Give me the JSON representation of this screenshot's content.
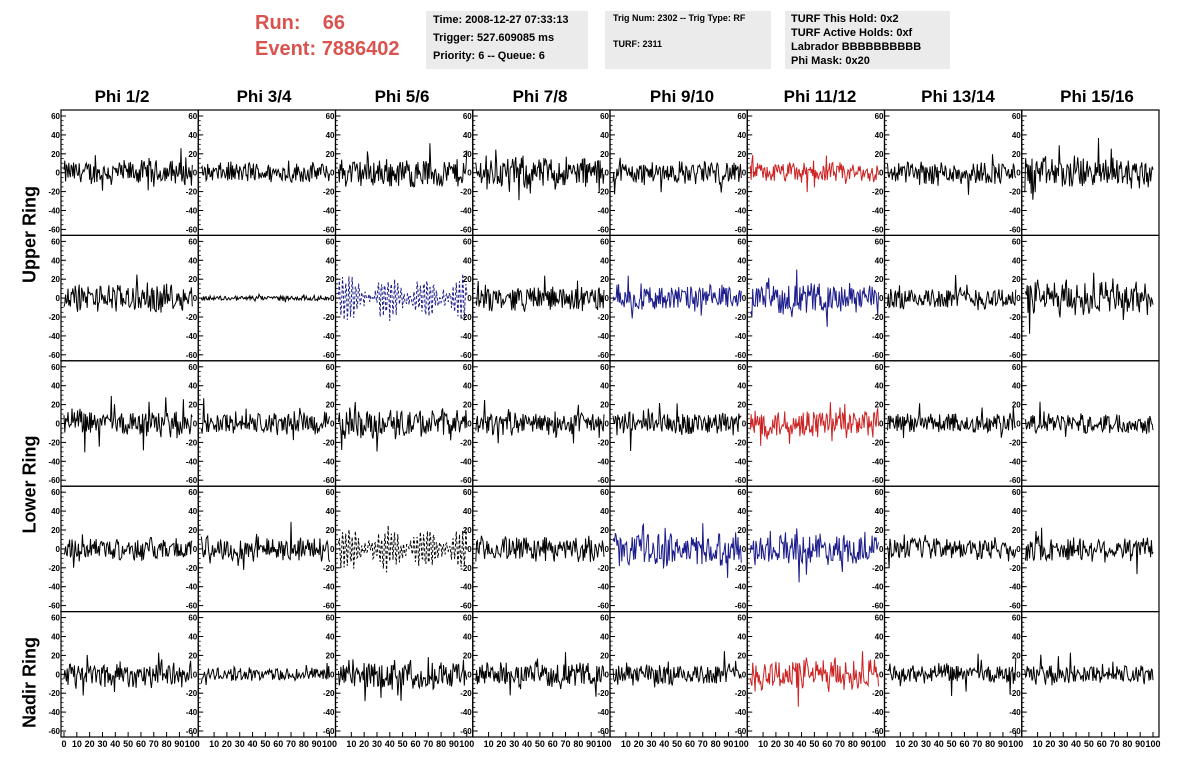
{
  "header": {
    "run_label": "Run:",
    "run_value": "66",
    "event_label": "Event:",
    "event_value": "7886402"
  },
  "info": {
    "time": "Time: 2008-12-27 07:33:13",
    "trigger": "Trigger: 527.609085 ms",
    "priority": "Priority: 6 -- Queue: 6",
    "trig": "Trig Num: 2302 -- Trig Type: RF",
    "turf": "TURF: 2311",
    "turf_hold": "TURF This Hold: 0x2",
    "turf_active": "TURF Active Holds: 0xf",
    "labrador": "Labrador BBBBBBBBBB",
    "phi_mask": "Phi Mask: 0x20"
  },
  "columns": [
    "Phi 1/2",
    "Phi 3/4",
    "Phi 5/6",
    "Phi 7/8",
    "Phi 9/10",
    "Phi 11/12",
    "Phi 13/14",
    "Phi 15/16"
  ],
  "rings": [
    "Upper Ring",
    "Lower Ring",
    "Nadir Ring"
  ],
  "chart_data": {
    "type": "line",
    "ylim": [
      -60,
      60
    ],
    "xlim": [
      0,
      100
    ],
    "y_ticks": [
      60,
      40,
      20,
      0,
      -20,
      -40,
      -60
    ],
    "x_ticks_first": [
      0,
      10,
      20,
      30,
      40,
      50,
      60,
      70,
      80,
      90,
      100
    ],
    "x_ticks_other": [
      10,
      20,
      30,
      40,
      50,
      60,
      70,
      80,
      90,
      100
    ],
    "colors": {
      "black": "#000000",
      "red": "#cc2222",
      "blue": "#1c1c8c",
      "header_red": "#d9534f",
      "box_bg": "#ebebeb"
    },
    "rows": [
      {
        "amplitudes": [
          15,
          12,
          18,
          20,
          14,
          12,
          14,
          20
        ],
        "colors": [
          "black",
          "black",
          "black",
          "black",
          "black",
          "red",
          "black",
          "black"
        ],
        "styles": [
          "solid",
          "solid",
          "solid",
          "solid",
          "solid",
          "solid",
          "solid",
          "solid"
        ]
      },
      {
        "amplitudes": [
          17,
          3,
          20,
          15,
          15,
          18,
          14,
          22
        ],
        "colors": [
          "black",
          "black",
          "blue",
          "black",
          "blue",
          "blue",
          "black",
          "black"
        ],
        "styles": [
          "solid",
          "solid",
          "dashed",
          "solid",
          "solid",
          "solid",
          "solid",
          "solid"
        ]
      },
      {
        "amplitudes": [
          16,
          14,
          18,
          14,
          15,
          18,
          13,
          12
        ],
        "colors": [
          "black",
          "black",
          "black",
          "black",
          "black",
          "red",
          "black",
          "black"
        ],
        "styles": [
          "solid",
          "solid",
          "solid",
          "solid",
          "solid",
          "solid",
          "solid",
          "solid"
        ]
      },
      {
        "amplitudes": [
          14,
          15,
          20,
          15,
          20,
          18,
          13,
          15
        ],
        "colors": [
          "black",
          "black",
          "black",
          "black",
          "blue",
          "blue",
          "black",
          "black"
        ],
        "styles": [
          "solid",
          "solid",
          "dashed",
          "solid",
          "solid",
          "solid",
          "solid",
          "solid"
        ]
      },
      {
        "amplitudes": [
          16,
          8,
          18,
          14,
          14,
          20,
          12,
          12
        ],
        "colors": [
          "black",
          "black",
          "black",
          "black",
          "black",
          "red",
          "black",
          "black"
        ],
        "styles": [
          "solid",
          "solid",
          "solid",
          "solid",
          "solid",
          "solid",
          "solid",
          "solid"
        ]
      }
    ]
  }
}
